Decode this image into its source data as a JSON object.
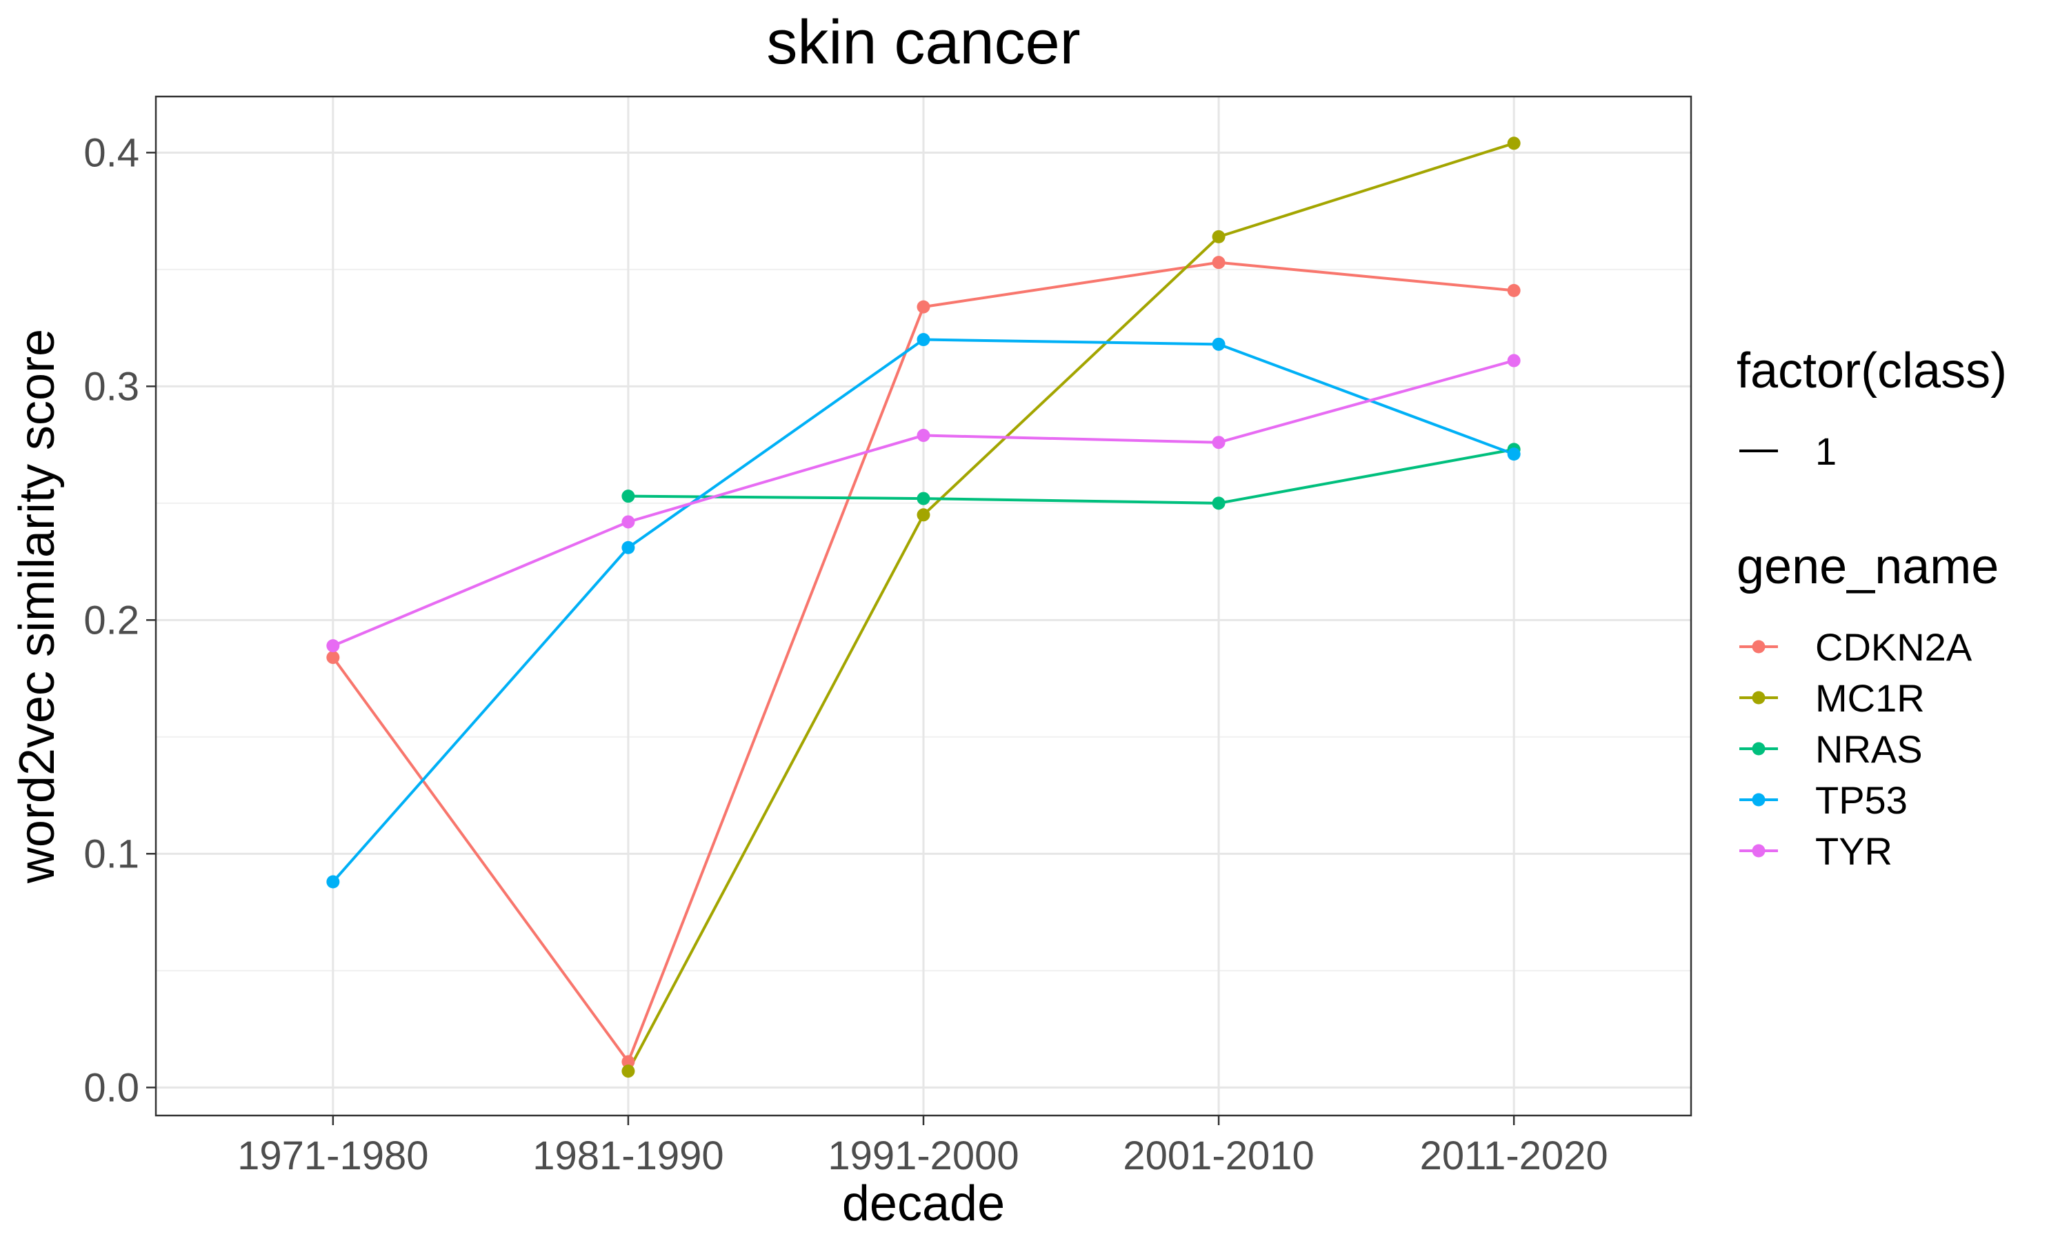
{
  "chart_data": {
    "type": "line",
    "title": "skin cancer",
    "xlabel": "decade",
    "ylabel": "word2vec similarity score",
    "categories": [
      "1971-1980",
      "1981-1990",
      "1991-2000",
      "2001-2010",
      "2011-2020"
    ],
    "ylim": [
      -0.012,
      0.424
    ],
    "yticks": [
      0.0,
      0.1,
      0.2,
      0.3,
      0.4
    ],
    "ytick_labels": [
      "0.0",
      "0.1",
      "0.2",
      "0.3",
      "0.4"
    ],
    "grid": true,
    "legend_position": "right",
    "legend": {
      "linetype_title": "factor(class)",
      "linetype_entries": [
        "1"
      ],
      "color_title": "gene_name"
    },
    "series": [
      {
        "name": "CDKN2A",
        "color": "#F8766D",
        "values": [
          0.184,
          0.011,
          0.334,
          0.353,
          0.341
        ]
      },
      {
        "name": "MC1R",
        "color": "#A3A500",
        "values": [
          null,
          0.007,
          0.245,
          0.364,
          0.404
        ]
      },
      {
        "name": "NRAS",
        "color": "#00BF7D",
        "values": [
          null,
          0.253,
          0.252,
          0.25,
          0.273
        ]
      },
      {
        "name": "TP53",
        "color": "#00B0F6",
        "values": [
          0.088,
          0.231,
          0.32,
          0.318,
          0.271
        ]
      },
      {
        "name": "TYR",
        "color": "#E76BF3",
        "values": [
          0.189,
          0.242,
          0.279,
          0.276,
          0.311
        ]
      }
    ]
  }
}
